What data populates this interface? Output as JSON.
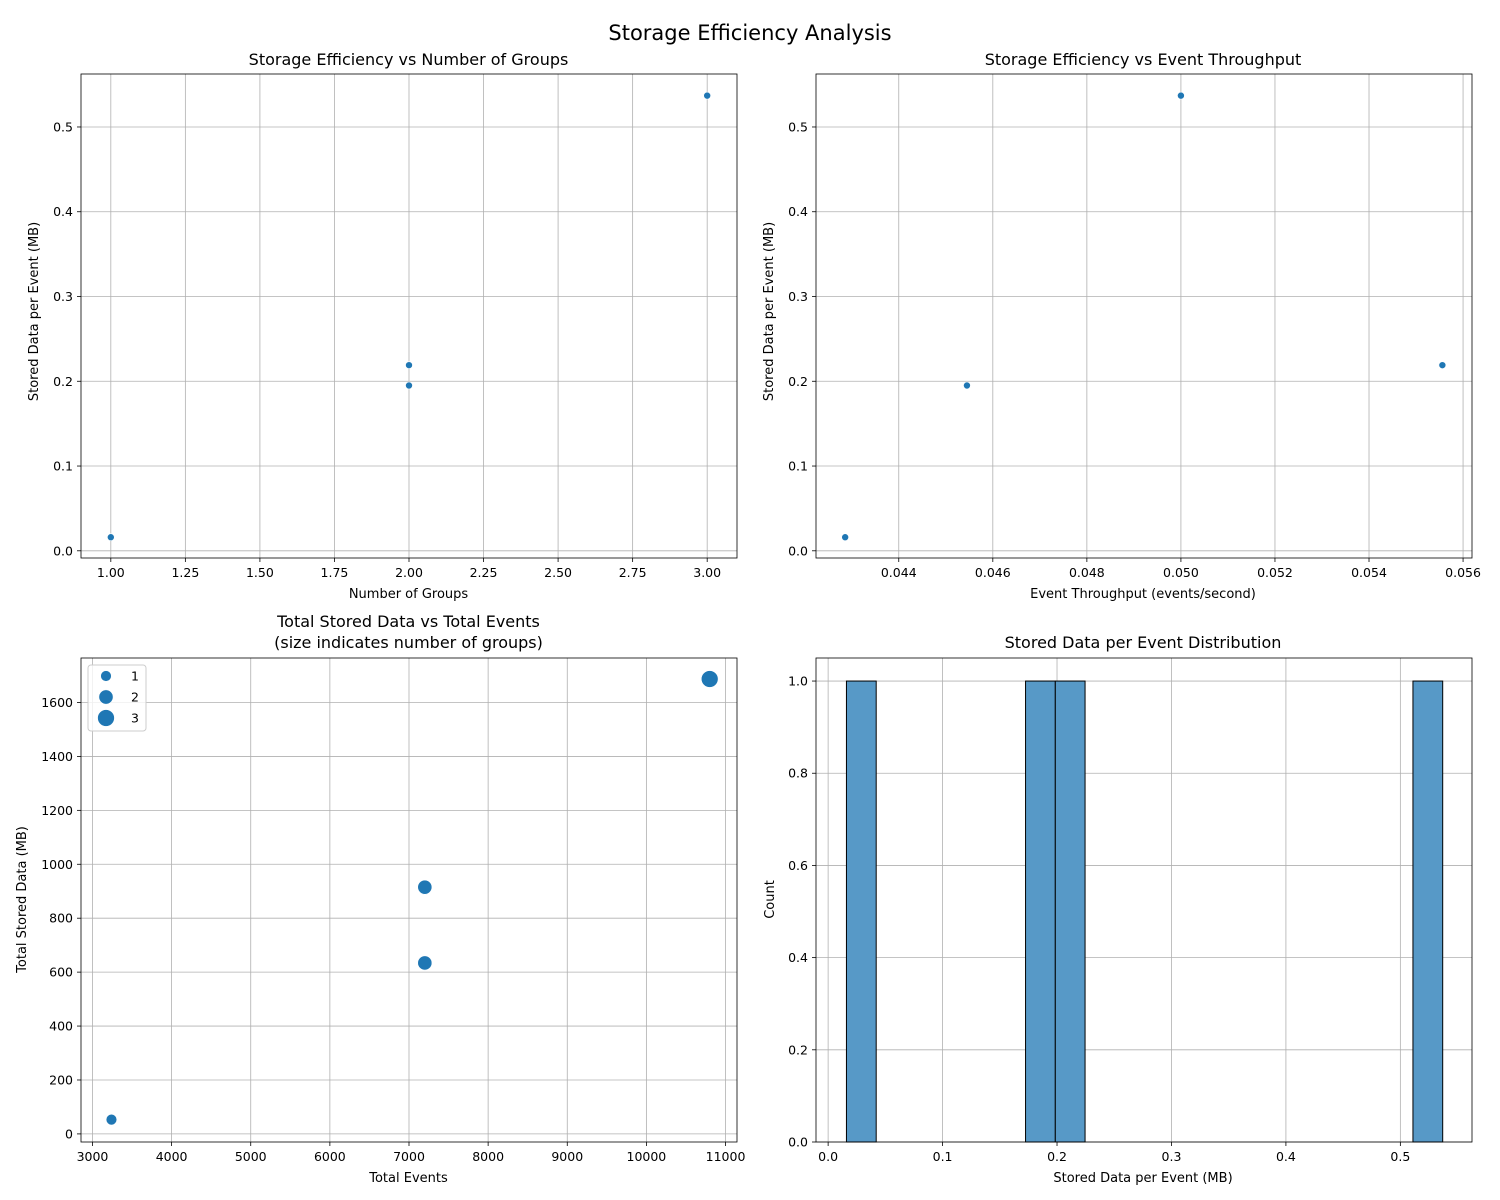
{
  "figure": {
    "title": "Storage Efficiency Analysis",
    "accent_color": "#1f77b4",
    "hist_color": "#5799c7"
  },
  "chart_data": [
    {
      "type": "scatter",
      "title": "Storage Efficiency vs Number of Groups",
      "xlabel": "Number of Groups",
      "ylabel": "Stored Data per Event (MB)",
      "xlim": [
        0.9,
        3.1
      ],
      "ylim": [
        -0.0085,
        0.5625
      ],
      "xticks": [
        1.0,
        1.25,
        1.5,
        1.75,
        2.0,
        2.25,
        2.5,
        2.75,
        3.0
      ],
      "xtick_labels": [
        "1.00",
        "1.25",
        "1.50",
        "1.75",
        "2.00",
        "2.25",
        "2.50",
        "2.75",
        "3.00"
      ],
      "yticks": [
        0.0,
        0.1,
        0.2,
        0.3,
        0.4,
        0.5
      ],
      "ytick_labels": [
        "0.0",
        "0.1",
        "0.2",
        "0.3",
        "0.4",
        "0.5"
      ],
      "grid": true,
      "points": [
        {
          "x": 1,
          "y": 0.016
        },
        {
          "x": 2,
          "y": 0.219
        },
        {
          "x": 2,
          "y": 0.195
        },
        {
          "x": 3,
          "y": 0.537
        }
      ]
    },
    {
      "type": "scatter",
      "title": "Storage Efficiency vs Event Throughput",
      "xlabel": "Event Throughput (events/second)",
      "ylabel": "Stored Data per Event (MB)",
      "xlim": [
        0.04224,
        0.05619
      ],
      "ylim": [
        -0.0085,
        0.5625
      ],
      "xticks": [
        0.044,
        0.046,
        0.048,
        0.05,
        0.052,
        0.054,
        0.056
      ],
      "xtick_labels": [
        "0.044",
        "0.046",
        "0.048",
        "0.050",
        "0.052",
        "0.054",
        "0.056"
      ],
      "yticks": [
        0.0,
        0.1,
        0.2,
        0.3,
        0.4,
        0.5
      ],
      "ytick_labels": [
        "0.0",
        "0.1",
        "0.2",
        "0.3",
        "0.4",
        "0.5"
      ],
      "grid": true,
      "points": [
        {
          "x": 0.04286,
          "y": 0.016
        },
        {
          "x": 0.04545,
          "y": 0.195
        },
        {
          "x": 0.05,
          "y": 0.537
        },
        {
          "x": 0.05556,
          "y": 0.219
        }
      ]
    },
    {
      "type": "scatter",
      "title": "Total Stored Data vs Total Events",
      "subtitle": "(size indicates number of groups)",
      "xlabel": "Total Events",
      "ylabel": "Total Stored Data (MB)",
      "xlim": [
        2855,
        11145
      ],
      "ylim": [
        -30,
        1765
      ],
      "xticks": [
        3000,
        4000,
        5000,
        6000,
        7000,
        8000,
        9000,
        10000,
        11000
      ],
      "xtick_labels": [
        "3000",
        "4000",
        "5000",
        "6000",
        "7000",
        "8000",
        "9000",
        "10000",
        "11000"
      ],
      "yticks": [
        0,
        200,
        400,
        600,
        800,
        1000,
        1200,
        1400,
        1600
      ],
      "ytick_labels": [
        "0",
        "200",
        "400",
        "600",
        "800",
        "1000",
        "1200",
        "1400",
        "1600"
      ],
      "grid": true,
      "legend_position": "upper-left",
      "size_legend": [
        {
          "label": "1",
          "groups": 1
        },
        {
          "label": "2",
          "groups": 2
        },
        {
          "label": "3",
          "groups": 3
        }
      ],
      "points": [
        {
          "x": 3240,
          "y": 53,
          "groups": 1
        },
        {
          "x": 7200,
          "y": 915,
          "groups": 2
        },
        {
          "x": 7200,
          "y": 634,
          "groups": 2
        },
        {
          "x": 10800,
          "y": 1687,
          "groups": 3
        }
      ]
    },
    {
      "type": "bar",
      "subtype": "histogram",
      "title": "Stored Data per Event Distribution",
      "xlabel": "Stored Data per Event (MB)",
      "ylabel": "Count",
      "xlim": [
        -0.0106,
        0.5626
      ],
      "ylim": [
        0,
        1.05
      ],
      "xticks": [
        0.0,
        0.1,
        0.2,
        0.3,
        0.4,
        0.5
      ],
      "xtick_labels": [
        "0.0",
        "0.1",
        "0.2",
        "0.3",
        "0.4",
        "0.5"
      ],
      "yticks": [
        0.0,
        0.2,
        0.4,
        0.6,
        0.8,
        1.0
      ],
      "ytick_labels": [
        "0.0",
        "0.2",
        "0.4",
        "0.6",
        "0.8",
        "1.0"
      ],
      "grid": true,
      "bins": [
        {
          "x0": 0.016,
          "x1": 0.042,
          "count": 1
        },
        {
          "x0": 0.1725,
          "x1": 0.1985,
          "count": 1
        },
        {
          "x0": 0.1985,
          "x1": 0.2245,
          "count": 1
        },
        {
          "x0": 0.511,
          "x1": 0.537,
          "count": 1
        }
      ]
    }
  ]
}
